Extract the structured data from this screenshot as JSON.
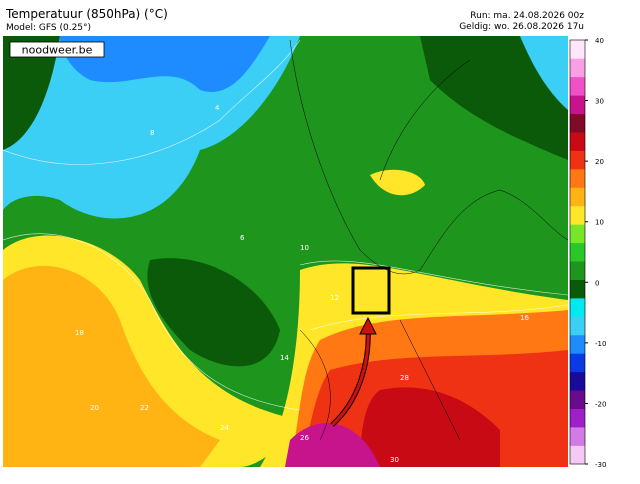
{
  "header": {
    "title": "Temperatuur (850hPa) (°C)",
    "model": "Model: GFS (0.25°)",
    "run": "Run: ma. 24.08.2026 00z",
    "valid": "Geldig: wo. 26.08.2026 17u"
  },
  "watermark": "noodweer.be",
  "colorbar": {
    "range": [
      -30,
      40
    ],
    "ticks": [
      40,
      30,
      20,
      10,
      0,
      -10,
      -20,
      -30
    ],
    "colors": [
      "#f5c8f5",
      "#d27ae6",
      "#a020c8",
      "#6a0a8c",
      "#1a0a9a",
      "#0a3ae6",
      "#1e8cff",
      "#3ccff5",
      "#00e8f0",
      "#0a5a0a",
      "#1e961e",
      "#28c828",
      "#78e628",
      "#ffe628",
      "#ffb414",
      "#ff7814",
      "#f03214",
      "#c80a14",
      "#800a28",
      "#c8148c",
      "#f050c8",
      "#f8a0e6",
      "#ffe6fa"
    ]
  },
  "contour_labels": [
    4,
    8,
    6,
    10,
    12,
    14,
    18,
    20,
    22,
    24,
    26,
    28,
    16,
    30
  ]
}
